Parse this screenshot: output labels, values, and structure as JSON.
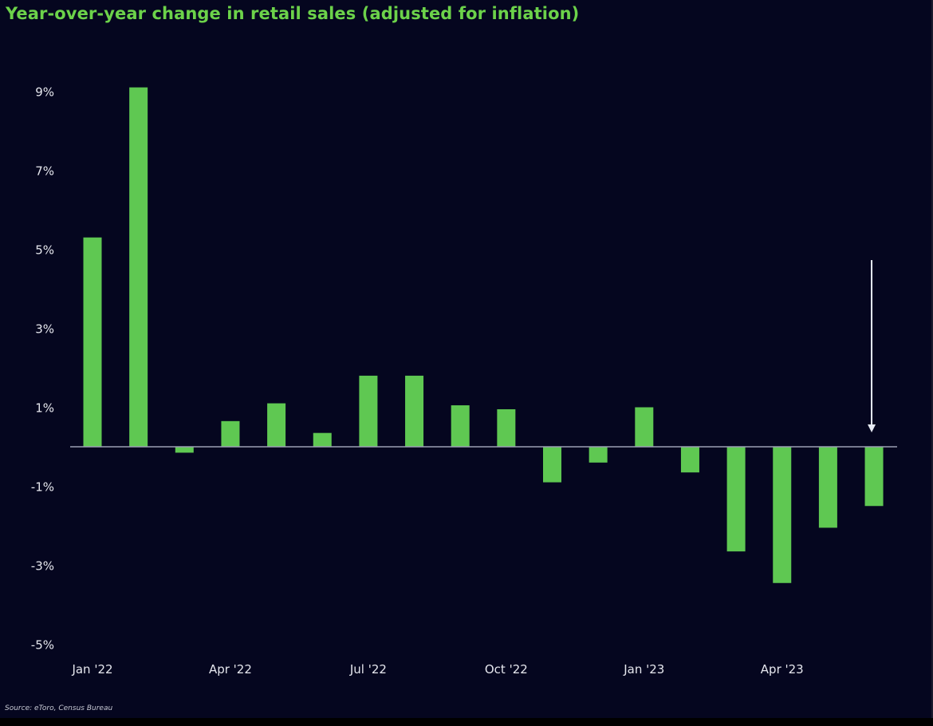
{
  "title": "Year-over-year change in retail sales (adjusted for inflation)",
  "source": "Source: eToro, Census Bureau",
  "colors": {
    "background": "#05061f",
    "bar": "#5fc852",
    "title": "#6cd24a",
    "text": "#e6e7ee",
    "zero_line": "#9c9fb4",
    "arrow": "#e8ecf5"
  },
  "chart_data": {
    "type": "bar",
    "title": "Year-over-year change in retail sales (adjusted for inflation)",
    "xlabel": "",
    "ylabel": "",
    "categories": [
      "Jan '22",
      "Feb '22",
      "Mar '22",
      "Apr '22",
      "May '22",
      "Jun '22",
      "Jul '22",
      "Aug '22",
      "Sep '22",
      "Oct '22",
      "Nov '22",
      "Dec '22",
      "Jan '23",
      "Feb '23",
      "Mar '23",
      "Apr '23",
      "May '23",
      "Jun '23"
    ],
    "x_tick_labels": [
      "Jan '22",
      "Apr '22",
      "Jul '22",
      "Oct '22",
      "Jan '23",
      "Apr '23"
    ],
    "values": [
      5.3,
      9.1,
      -0.15,
      0.65,
      1.1,
      0.35,
      1.8,
      1.8,
      1.05,
      0.95,
      -0.9,
      -0.4,
      1.0,
      -0.65,
      -2.65,
      -3.45,
      -2.05,
      -1.5
    ],
    "unit": "%",
    "ylim": [
      -5,
      10
    ],
    "y_ticks": [
      9,
      7,
      5,
      3,
      1,
      -1,
      -3,
      -5
    ],
    "y_tick_labels": [
      "9%",
      "7%",
      "5%",
      "3%",
      "1%",
      "-1%",
      "-3%",
      "-5%"
    ],
    "grid": false,
    "legend": "none",
    "annotations": [
      {
        "type": "arrow",
        "points_to": "Jun '23"
      }
    ]
  }
}
